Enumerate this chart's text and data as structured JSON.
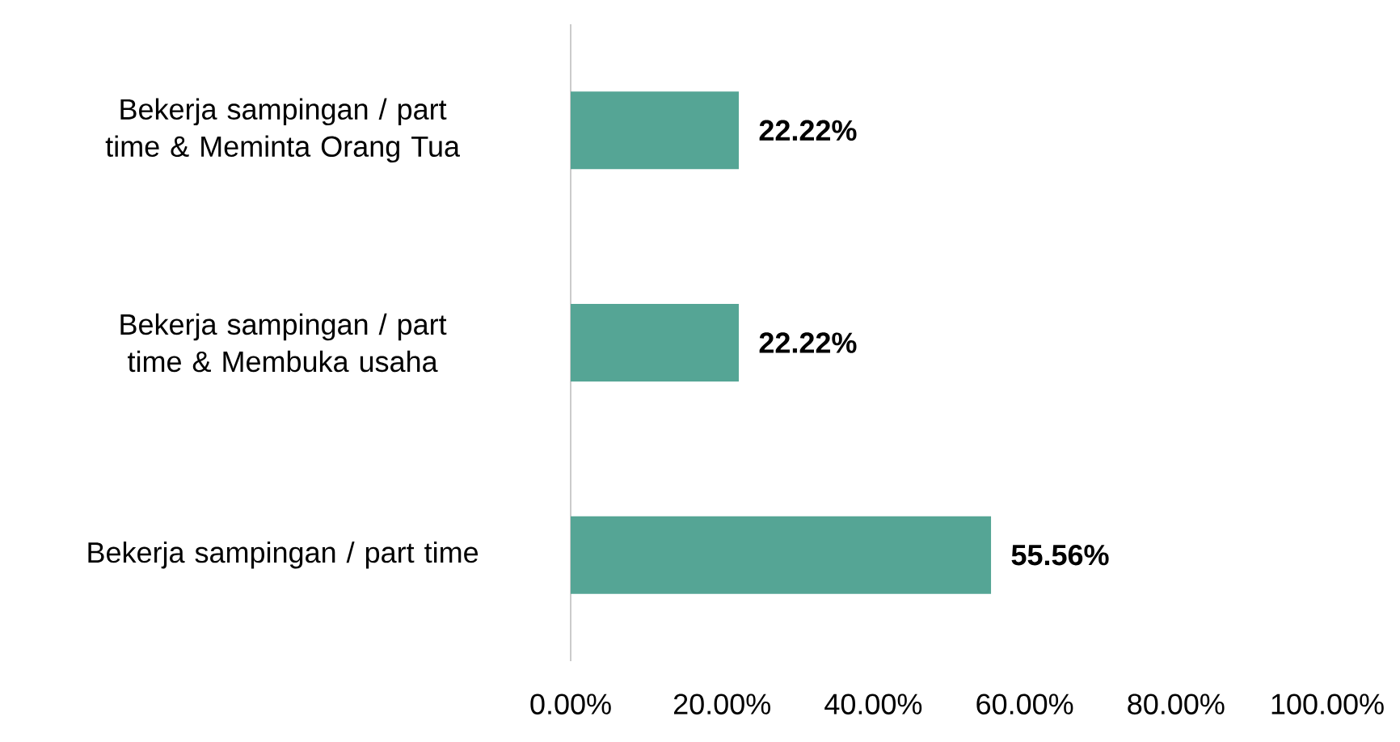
{
  "chart_data": {
    "type": "bar",
    "orientation": "horizontal",
    "categories": [
      "Bekerja sampingan / part time & Meminta Orang Tua",
      "Bekerja sampingan / part time & Membuka usaha",
      "Bekerja sampingan / part time"
    ],
    "values": [
      22.22,
      22.22,
      55.56
    ],
    "value_labels": [
      "22.22%",
      "22.22%",
      "55.56%"
    ],
    "color": "#55a595",
    "xlim": [
      0,
      100
    ],
    "xticks": [
      {
        "value": 0,
        "label": "0.00%"
      },
      {
        "value": 20,
        "label": "20.00%"
      },
      {
        "value": 40,
        "label": "40.00%"
      },
      {
        "value": 60,
        "label": "60.00%"
      },
      {
        "value": 80,
        "label": "80.00%"
      },
      {
        "value": 100,
        "label": "100.00%"
      }
    ],
    "grid": false
  }
}
